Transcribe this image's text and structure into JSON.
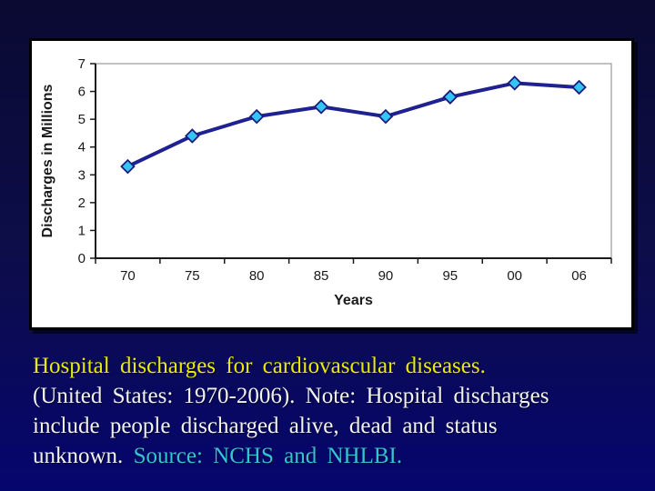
{
  "slide": {
    "background_top_color": "#0a0a32",
    "background_bottom_color": "#05056e"
  },
  "chart_data": {
    "type": "line",
    "categories": [
      "70",
      "75",
      "80",
      "85",
      "90",
      "95",
      "00",
      "06"
    ],
    "series": [
      {
        "name": "Discharges",
        "values": [
          3.3,
          4.4,
          5.1,
          5.45,
          5.1,
          5.8,
          6.3,
          6.15
        ]
      }
    ],
    "xlabel": "Years",
    "ylabel": "Discharges in Millions",
    "ylim": [
      0,
      7
    ],
    "yticks": [
      0,
      1,
      2,
      3,
      4,
      5,
      6,
      7
    ],
    "grid": false,
    "legend_position": "none",
    "plot_background": "#ffffff",
    "plot_border_color": "#999999",
    "axis_color": "#1a1a1a",
    "tick_label_color": "#1a1a1a",
    "line_color": "#1f2191",
    "line_width": 4,
    "marker": "diamond",
    "marker_fill": "#33c6f2",
    "marker_stroke": "#1b1b7e"
  },
  "caption": {
    "line1": "Hospital discharges for cardiovascular diseases.",
    "line2": "(United States: 1970-2006). Note: Hospital discharges",
    "line3": "include people discharged alive, dead and status",
    "line4_lead": "unknown. ",
    "line4_source": "Source: NCHS and NHLBI.",
    "colors": {
      "title_yellow": "#e9e90a",
      "body_white": "#f2f2f2",
      "source_cyan": "#35c4d4"
    }
  }
}
